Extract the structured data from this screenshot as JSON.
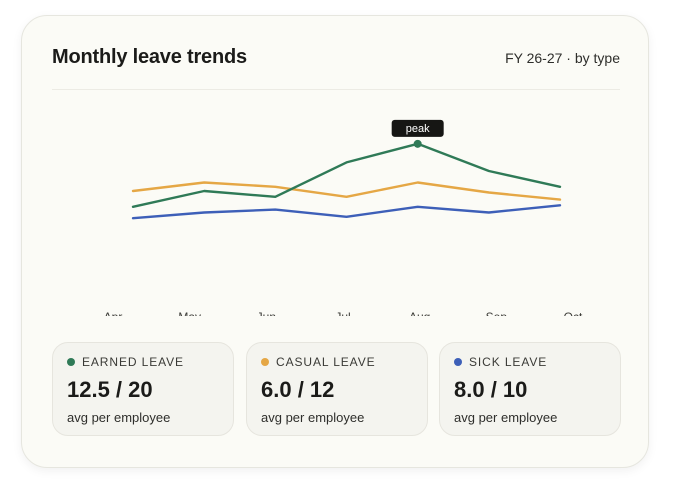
{
  "header": {
    "title": "Monthly leave trends",
    "subtitle": "FY 26-27 · by type"
  },
  "chart_data": {
    "type": "line",
    "categories": [
      "Apr",
      "May",
      "Jun",
      "Jul",
      "Aug",
      "Sep",
      "Oct"
    ],
    "series": [
      {
        "key": "earned",
        "color": "#2f7a57",
        "values": [
          6.1,
          7.2,
          6.8,
          9.2,
          10.5,
          8.6,
          7.5
        ]
      },
      {
        "key": "casual",
        "color": "#e5a745",
        "values": [
          7.2,
          7.8,
          7.5,
          6.8,
          7.8,
          7.1,
          6.6
        ]
      },
      {
        "key": "sick",
        "color": "#3d5fb8",
        "values": [
          5.3,
          5.7,
          5.9,
          5.4,
          6.1,
          5.7,
          6.2
        ]
      }
    ],
    "annotation": {
      "label": "peak",
      "series": "earned",
      "index": 4
    },
    "ylim": [
      0,
      20
    ],
    "grid": false,
    "legend": "bottom"
  },
  "stats": [
    {
      "label": "EARNED LEAVE",
      "value": "12.5 / 20",
      "sub": "avg per employee",
      "color": "#2f7a57"
    },
    {
      "label": "CASUAL LEAVE",
      "value": "6.0 / 12",
      "sub": "avg per employee",
      "color": "#e5a745"
    },
    {
      "label": "SICK LEAVE",
      "value": "8.0 / 10",
      "sub": "avg per employee",
      "color": "#3d5fb8"
    }
  ]
}
